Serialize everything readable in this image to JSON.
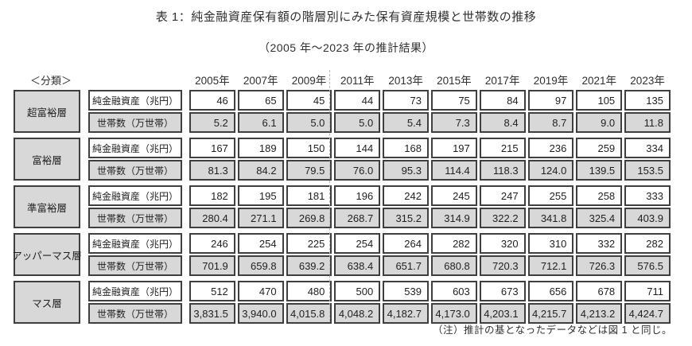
{
  "title": "表 1：純金融資産保有額の階層別にみた保有資産規模と世帯数の推移",
  "subtitle": "（2005 年～2023 年の推計結果）",
  "note": "（注）推計の基となったデータなどは図 1 と同じ。",
  "colors": {
    "cell_gray": "#d8d8d8",
    "cell_border": "#3f3f3f",
    "text": "#262626",
    "page_break_dash": "#b8b8b8"
  },
  "table": {
    "classification_label": "＜分類＞",
    "years": [
      "2005年",
      "2007年",
      "2009年",
      "2011年",
      "2013年",
      "2015年",
      "2017年",
      "2019年",
      "2021年",
      "2023年"
    ],
    "row_labels": {
      "assets": "純金融資産（兆円）",
      "households": "世帯数（万世帯）"
    },
    "groups": [
      {
        "category": "超富裕層",
        "assets": [
          "46",
          "65",
          "45",
          "44",
          "73",
          "75",
          "84",
          "97",
          "105",
          "135"
        ],
        "households": [
          "5.2",
          "6.1",
          "5.0",
          "5.0",
          "5.4",
          "7.3",
          "8.4",
          "8.7",
          "9.0",
          "11.8"
        ]
      },
      {
        "category": "富裕層",
        "assets": [
          "167",
          "189",
          "150",
          "144",
          "168",
          "197",
          "215",
          "236",
          "259",
          "334"
        ],
        "households": [
          "81.3",
          "84.2",
          "79.5",
          "76.0",
          "95.3",
          "114.4",
          "118.3",
          "124.0",
          "139.5",
          "153.5"
        ]
      },
      {
        "category": "準富裕層",
        "assets": [
          "182",
          "195",
          "181",
          "196",
          "242",
          "245",
          "247",
          "255",
          "258",
          "333"
        ],
        "households": [
          "280.4",
          "271.1",
          "269.8",
          "268.7",
          "315.2",
          "314.9",
          "322.2",
          "341.8",
          "325.4",
          "403.9"
        ]
      },
      {
        "category": "アッパーマス層",
        "assets": [
          "246",
          "254",
          "225",
          "254",
          "264",
          "282",
          "320",
          "310",
          "332",
          "282"
        ],
        "households": [
          "701.9",
          "659.8",
          "639.2",
          "638.4",
          "651.7",
          "680.8",
          "720.3",
          "712.1",
          "726.3",
          "576.5"
        ]
      },
      {
        "category": "マス層",
        "assets": [
          "512",
          "470",
          "480",
          "500",
          "539",
          "603",
          "673",
          "656",
          "678",
          "711"
        ],
        "households": [
          "3,831.5",
          "3,940.0",
          "4,015.8",
          "4,048.2",
          "4,182.7",
          "4,173.0",
          "4,203.1",
          "4,215.7",
          "4,213.2",
          "4,424.7"
        ]
      }
    ]
  }
}
